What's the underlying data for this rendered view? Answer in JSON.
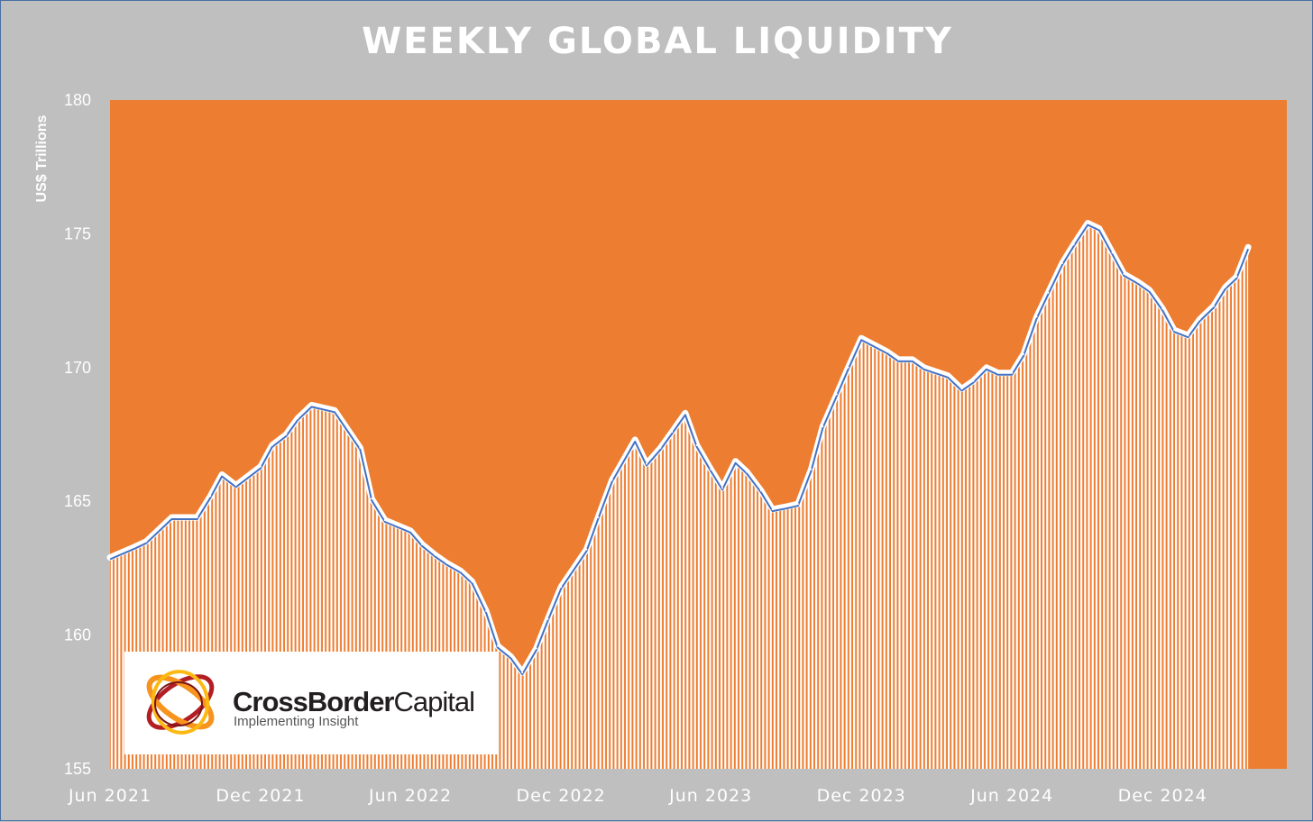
{
  "chart_data": {
    "type": "area",
    "title": "WEEKLY GLOBAL LIQUIDITY",
    "ylabel": "US$ Trillions",
    "xlabel": "",
    "ylim": [
      155,
      180
    ],
    "yticks": [
      155,
      160,
      165,
      170,
      175,
      180
    ],
    "xlim": [
      "2021-06",
      "2025-05"
    ],
    "xtick_labels": [
      "Jun 2021",
      "Dec 2021",
      "Jun 2022",
      "Dec 2022",
      "Jun 2023",
      "Dec 2023",
      "Jun 2024",
      "Dec 2024"
    ],
    "grid": false,
    "legend": "none",
    "colors": {
      "background": "#ed7d31",
      "fill_stripes": "#ffffff",
      "line_outer": "#ffffff",
      "line_inner": "#4472c4"
    },
    "x": [
      "2021-06-01",
      "2021-07-01",
      "2021-07-15",
      "2021-08-15",
      "2021-09-15",
      "2021-10-01",
      "2021-10-15",
      "2021-11-01",
      "2021-12-01",
      "2021-12-15",
      "2022-01-01",
      "2022-01-15",
      "2022-02-01",
      "2022-03-01",
      "2022-04-01",
      "2022-04-15",
      "2022-05-01",
      "2022-06-01",
      "2022-06-15",
      "2022-07-01",
      "2022-07-15",
      "2022-08-01",
      "2022-08-15",
      "2022-09-01",
      "2022-09-15",
      "2022-10-01",
      "2022-10-15",
      "2022-11-01",
      "2022-11-15",
      "2022-12-01",
      "2023-01-01",
      "2023-01-15",
      "2023-02-01",
      "2023-03-01",
      "2023-03-15",
      "2023-04-01",
      "2023-04-15",
      "2023-05-01",
      "2023-05-15",
      "2023-06-01",
      "2023-06-15",
      "2023-07-01",
      "2023-07-15",
      "2023-08-01",
      "2023-08-15",
      "2023-09-01",
      "2023-09-15",
      "2023-10-01",
      "2023-10-15",
      "2023-11-01",
      "2023-11-15",
      "2023-12-01",
      "2024-01-01",
      "2024-01-15",
      "2024-02-01",
      "2024-02-15",
      "2024-03-15",
      "2024-04-01",
      "2024-04-15",
      "2024-05-01",
      "2024-05-15",
      "2024-06-01",
      "2024-06-15",
      "2024-07-01",
      "2024-07-15",
      "2024-08-01",
      "2024-08-15",
      "2024-09-01",
      "2024-09-15",
      "2024-10-01",
      "2024-10-15",
      "2024-11-01",
      "2024-11-15",
      "2024-12-01",
      "2024-12-15",
      "2025-01-01",
      "2025-01-15",
      "2025-02-01",
      "2025-02-15",
      "2025-03-01",
      "2025-03-15"
    ],
    "series": [
      {
        "values": [
          162.9,
          163.3,
          163.5,
          164.4,
          164.4,
          165.2,
          166.0,
          165.6,
          166.3,
          167.1,
          167.5,
          168.1,
          168.6,
          168.4,
          167.0,
          165.1,
          164.3,
          163.9,
          163.4,
          163.0,
          162.7,
          162.4,
          162.0,
          160.9,
          159.6,
          159.2,
          158.6,
          159.5,
          160.6,
          161.8,
          163.2,
          164.4,
          165.8,
          167.3,
          166.4,
          167.0,
          167.6,
          168.3,
          167.1,
          166.2,
          165.5,
          166.5,
          166.1,
          165.4,
          164.7,
          164.8,
          164.9,
          166.2,
          167.8,
          169.0,
          170.0,
          171.1,
          170.6,
          170.3,
          170.3,
          170.0,
          169.7,
          169.2,
          169.5,
          170.0,
          169.8,
          169.8,
          170.5,
          171.9,
          172.8,
          173.9,
          174.6,
          175.4,
          175.2,
          174.3,
          173.5,
          173.2,
          172.9,
          172.2,
          171.4,
          171.2,
          171.8,
          172.3,
          173.0,
          173.4,
          174.5
        ]
      }
    ]
  },
  "logo": {
    "name_bold": "CrossBorder",
    "name_regular": "Capital",
    "tagline": "Implementing Insight"
  }
}
